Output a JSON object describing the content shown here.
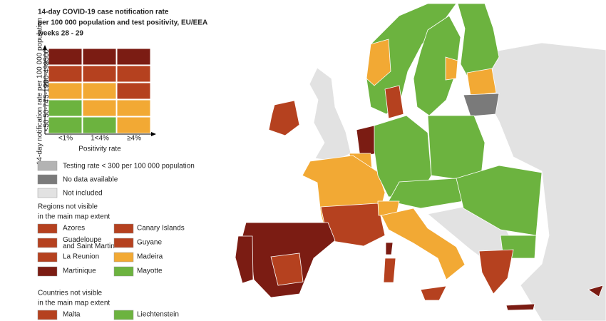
{
  "title": [
    "14-day COVID-19 case notification rate",
    "per 100 000 population and test positivity, EU/EEA",
    "weeks 28 - 29"
  ],
  "matrix": {
    "y_label": "14-day notification rate per 100 000 population",
    "rows": [
      "≥500",
      "200-499",
      "75-199",
      "50-74",
      "<50"
    ],
    "columns": [
      "<1%",
      "1<4%",
      "≥4%"
    ],
    "x_label": "Positivity rate",
    "cells": [
      [
        "#7b1c13",
        "#7b1c13",
        "#7b1c13"
      ],
      [
        "#b5411f",
        "#b5411f",
        "#b5411f"
      ],
      [
        "#f2a934",
        "#f2a934",
        "#b5411f"
      ],
      [
        "#6cb33f",
        "#f2a934",
        "#f2a934"
      ],
      [
        "#6cb33f",
        "#6cb33f",
        "#f2a934"
      ]
    ]
  },
  "legend": [
    {
      "label": "Testing rate < 300 per 100 000 population",
      "color": "#b3b3b3"
    },
    {
      "label": "No data available",
      "color": "#7a7a7a"
    },
    {
      "label": "Not included",
      "color": "#e2e2e2"
    }
  ],
  "regions": {
    "heading": [
      "Regions not visible",
      "in the main map extent"
    ],
    "items": [
      {
        "label": [
          "Azores"
        ],
        "color": "#b5411f"
      },
      {
        "label": [
          "Canary Islands"
        ],
        "color": "#b5411f"
      },
      {
        "label": [
          "Guadeloupe",
          "and Saint Martin"
        ],
        "color": "#b5411f"
      },
      {
        "label": [
          "Guyane"
        ],
        "color": "#b5411f"
      },
      {
        "label": [
          "La Reunion"
        ],
        "color": "#b5411f"
      },
      {
        "label": [
          "Madeira"
        ],
        "color": "#f2a934"
      },
      {
        "label": [
          "Martinique"
        ],
        "color": "#7b1c13"
      },
      {
        "label": [
          "Mayotte"
        ],
        "color": "#6cb33f"
      }
    ]
  },
  "countries": {
    "heading": [
      "Countries not visible",
      "in the main map extent"
    ],
    "items": [
      {
        "label": [
          "Malta"
        ],
        "color": "#b5411f"
      },
      {
        "label": [
          "Liechtenstein"
        ],
        "color": "#6cb33f"
      }
    ]
  }
}
